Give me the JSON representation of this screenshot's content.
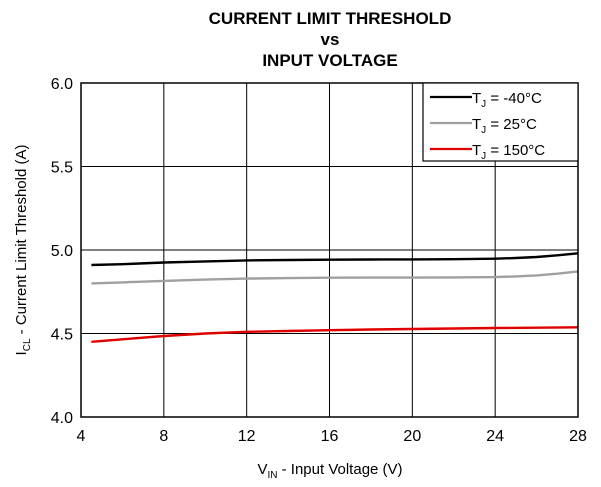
{
  "chart_data": {
    "type": "line",
    "title_lines": [
      "CURRENT LIMIT THRESHOLD",
      "vs",
      "INPUT VOLTAGE"
    ],
    "xlabel": {
      "main": "V",
      "sub": "IN",
      "rest": " - Input Voltage (V)"
    },
    "ylabel": {
      "main": "I",
      "sub": "CL",
      "rest": " - Current Limit Threshold (A)"
    },
    "xlim": [
      4,
      28
    ],
    "ylim": [
      4.0,
      6.0
    ],
    "xticks": [
      4,
      8,
      12,
      16,
      20,
      24,
      28
    ],
    "yticks": [
      4.0,
      4.5,
      5.0,
      5.5,
      6.0
    ],
    "xtick_labels": [
      "4",
      "8",
      "12",
      "16",
      "20",
      "24",
      "28"
    ],
    "ytick_labels": [
      "4.0",
      "4.5",
      "5.0",
      "5.5",
      "6.0"
    ],
    "grid": true,
    "legend_position": "top-right",
    "series": [
      {
        "name": "T_J = -40°C",
        "legend": {
          "main": "T",
          "sub": "J",
          "rest": " = -40°C"
        },
        "color": "#000000",
        "x": [
          4.5,
          6,
          8,
          10,
          12,
          14,
          16,
          18,
          20,
          22,
          24,
          25,
          26,
          27,
          28
        ],
        "y": [
          4.91,
          4.915,
          4.925,
          4.932,
          4.938,
          4.94,
          4.942,
          4.943,
          4.944,
          4.945,
          4.948,
          4.952,
          4.958,
          4.968,
          4.98
        ]
      },
      {
        "name": "T_J = 25°C",
        "legend": {
          "main": "T",
          "sub": "J",
          "rest": " = 25°C"
        },
        "color": "#a0a0a0",
        "x": [
          4.5,
          6,
          8,
          10,
          12,
          14,
          16,
          18,
          20,
          22,
          24,
          25,
          26,
          27,
          28
        ],
        "y": [
          4.8,
          4.806,
          4.815,
          4.823,
          4.829,
          4.832,
          4.834,
          4.835,
          4.835,
          4.836,
          4.838,
          4.842,
          4.848,
          4.858,
          4.872
        ]
      },
      {
        "name": "T_J = 150°C",
        "legend": {
          "main": "T",
          "sub": "J",
          "rest": " = 150°C"
        },
        "color": "#e00000",
        "x": [
          4.5,
          6,
          8,
          10,
          12,
          14,
          16,
          18,
          20,
          22,
          24,
          26,
          28
        ],
        "y": [
          4.45,
          4.465,
          4.485,
          4.5,
          4.51,
          4.515,
          4.52,
          4.524,
          4.527,
          4.53,
          4.533,
          4.535,
          4.537
        ]
      }
    ]
  }
}
